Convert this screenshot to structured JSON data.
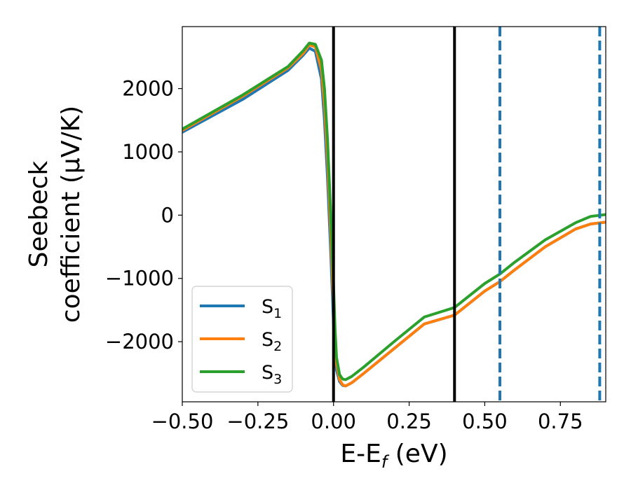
{
  "chart_data": {
    "type": "line",
    "xlabel": "E-E",
    "xlabel_sub": "f",
    "xlabel_unit": " (eV)",
    "ylabel_line1": "Seebeck",
    "ylabel_line2": "coefficient  (μV/K)",
    "xlim": [
      -0.5,
      0.9
    ],
    "ylim": [
      -2950,
      2980
    ],
    "xticks": [
      -0.5,
      -0.25,
      0.0,
      0.25,
      0.5,
      0.75
    ],
    "xtick_labels": [
      "−0.50",
      "−0.25",
      "0.00",
      "0.25",
      "0.50",
      "0.75"
    ],
    "yticks": [
      -2000,
      -1000,
      0,
      1000,
      2000
    ],
    "ytick_labels": [
      "−2000",
      "−1000",
      "0",
      "1000",
      "2000"
    ],
    "grid": false,
    "legend_position": "lower-left",
    "vertical_lines": [
      {
        "x": 0.0,
        "style": "solid",
        "color": "#000000"
      },
      {
        "x": 0.4,
        "style": "solid",
        "color": "#000000"
      },
      {
        "x": 0.55,
        "style": "dashed",
        "color": "#1f77b4"
      },
      {
        "x": 0.88,
        "style": "dashed",
        "color": "#1f77b4"
      }
    ],
    "series": [
      {
        "name": "S",
        "sub": "1",
        "color": "#1f77b4",
        "x": [
          -0.5,
          -0.3,
          -0.15,
          -0.1,
          -0.08,
          -0.06,
          -0.04,
          -0.03,
          -0.02,
          -0.01,
          0.0,
          0.005,
          0.01,
          0.02,
          0.03,
          0.04,
          0.06,
          0.1,
          0.2,
          0.3,
          0.4,
          0.5,
          0.55,
          0.6,
          0.7,
          0.8,
          0.85,
          0.9
        ],
        "y": [
          1310,
          1830,
          2290,
          2530,
          2640,
          2590,
          2150,
          1500,
          600,
          -500,
          -1700,
          -2250,
          -2450,
          -2630,
          -2690,
          -2700,
          -2650,
          -2500,
          -2110,
          -1720,
          -1580,
          -1200,
          -1050,
          -860,
          -500,
          -220,
          -140,
          -110
        ]
      },
      {
        "name": "S",
        "sub": "2",
        "color": "#ff7f0e",
        "x": [
          -0.5,
          -0.3,
          -0.15,
          -0.1,
          -0.08,
          -0.06,
          -0.04,
          -0.03,
          -0.02,
          -0.01,
          0.0,
          0.005,
          0.01,
          0.02,
          0.03,
          0.04,
          0.06,
          0.1,
          0.2,
          0.3,
          0.4,
          0.5,
          0.55,
          0.6,
          0.7,
          0.8,
          0.85,
          0.9
        ],
        "y": [
          1340,
          1880,
          2330,
          2560,
          2690,
          2660,
          2300,
          1750,
          900,
          -200,
          -1400,
          -2050,
          -2350,
          -2600,
          -2680,
          -2700,
          -2650,
          -2500,
          -2110,
          -1720,
          -1580,
          -1200,
          -1050,
          -860,
          -500,
          -220,
          -140,
          -110
        ]
      },
      {
        "name": "S",
        "sub": "3",
        "color": "#2ca02c",
        "x": [
          -0.5,
          -0.3,
          -0.15,
          -0.1,
          -0.08,
          -0.06,
          -0.04,
          -0.03,
          -0.02,
          -0.01,
          0.0,
          0.005,
          0.01,
          0.02,
          0.03,
          0.04,
          0.06,
          0.1,
          0.2,
          0.3,
          0.4,
          0.5,
          0.55,
          0.6,
          0.7,
          0.8,
          0.85,
          0.9
        ],
        "y": [
          1360,
          1900,
          2350,
          2600,
          2720,
          2700,
          2450,
          2000,
          1200,
          100,
          -1100,
          -1800,
          -2250,
          -2520,
          -2590,
          -2600,
          -2550,
          -2400,
          -2000,
          -1610,
          -1460,
          -1080,
          -930,
          -740,
          -390,
          -120,
          -20,
          10
        ]
      }
    ]
  }
}
